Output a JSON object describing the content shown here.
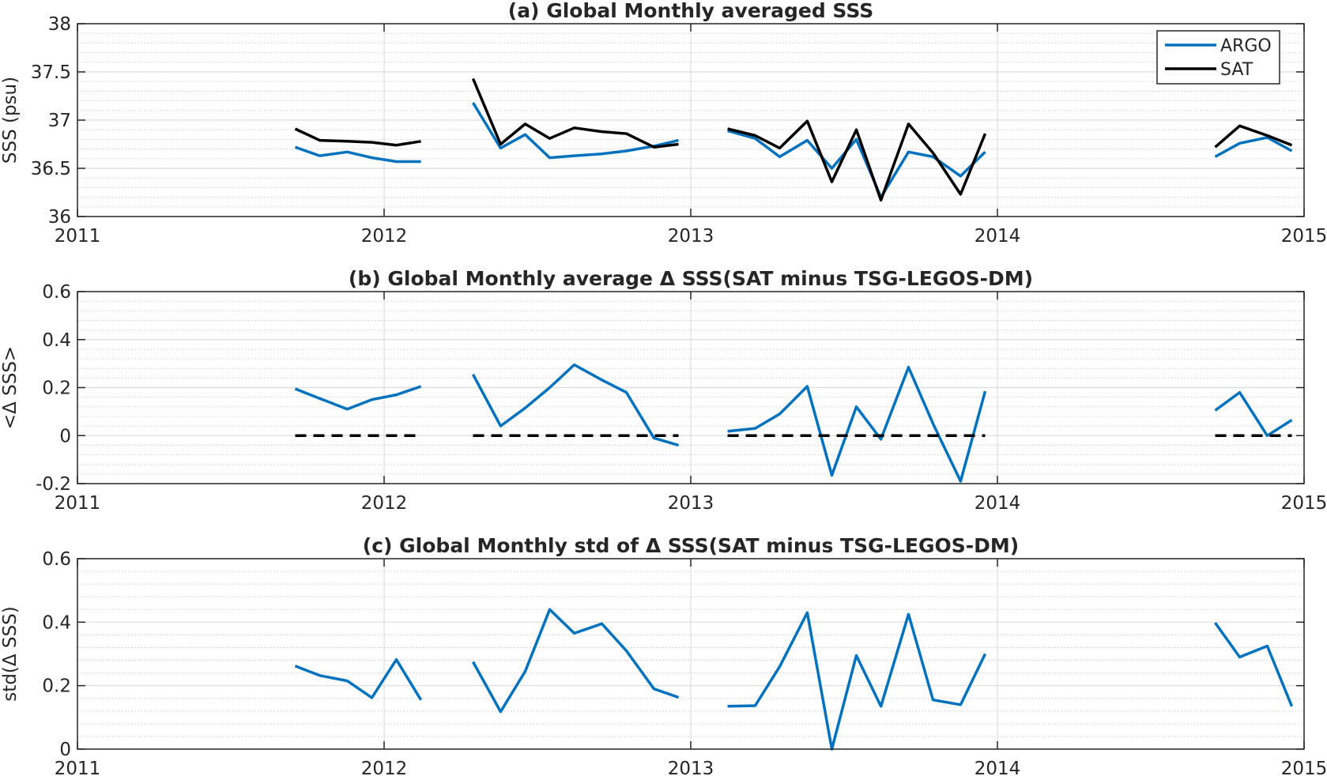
{
  "chart_data": [
    {
      "type": "line",
      "title": "(a) Global Monthly averaged SSS",
      "xlabel": "",
      "ylabel": "SSS (psu)",
      "xlim": [
        2011,
        2015
      ],
      "ylim": [
        36,
        38
      ],
      "xticks": [
        "2011",
        "2012",
        "2013",
        "2014",
        "2015"
      ],
      "yticks": [
        "36",
        "36.5",
        "37",
        "37.5",
        "38"
      ],
      "ytick_values": [
        36,
        36.5,
        37,
        37.5,
        38
      ],
      "minor_grid": true,
      "legend_position": "top-right",
      "series": [
        {
          "name": "ARGO",
          "color": "#0072BD",
          "segments": [
            [
              [
                2011.71,
                36.72
              ],
              [
                2011.79,
                36.63
              ],
              [
                2011.88,
                36.67
              ],
              [
                2011.96,
                36.61
              ],
              [
                2012.04,
                36.57
              ],
              [
                2012.12,
                36.57
              ]
            ],
            [
              [
                2012.29,
                37.18
              ],
              [
                2012.38,
                36.71
              ],
              [
                2012.46,
                36.85
              ],
              [
                2012.54,
                36.61
              ],
              [
                2012.62,
                36.63
              ],
              [
                2012.71,
                36.65
              ],
              [
                2012.79,
                36.68
              ],
              [
                2012.88,
                36.73
              ],
              [
                2012.96,
                36.79
              ]
            ],
            [
              [
                2013.12,
                36.89
              ],
              [
                2013.21,
                36.81
              ],
              [
                2013.29,
                36.62
              ],
              [
                2013.38,
                36.79
              ],
              [
                2013.46,
                36.5
              ],
              [
                2013.54,
                36.8
              ],
              [
                2013.62,
                36.2
              ],
              [
                2013.71,
                36.67
              ],
              [
                2013.79,
                36.62
              ],
              [
                2013.88,
                36.42
              ],
              [
                2013.96,
                36.67
              ]
            ],
            [
              [
                2014.71,
                36.62
              ],
              [
                2014.79,
                36.76
              ],
              [
                2014.88,
                36.82
              ],
              [
                2014.96,
                36.68
              ]
            ]
          ]
        },
        {
          "name": "SAT",
          "color": "#000000",
          "segments": [
            [
              [
                2011.71,
                36.91
              ],
              [
                2011.79,
                36.79
              ],
              [
                2011.88,
                36.78
              ],
              [
                2011.96,
                36.77
              ],
              [
                2012.04,
                36.74
              ],
              [
                2012.12,
                36.78
              ]
            ],
            [
              [
                2012.29,
                37.43
              ],
              [
                2012.38,
                36.75
              ],
              [
                2012.46,
                36.96
              ],
              [
                2012.54,
                36.81
              ],
              [
                2012.62,
                36.92
              ],
              [
                2012.71,
                36.88
              ],
              [
                2012.79,
                36.86
              ],
              [
                2012.88,
                36.72
              ],
              [
                2012.96,
                36.75
              ]
            ],
            [
              [
                2013.12,
                36.91
              ],
              [
                2013.21,
                36.84
              ],
              [
                2013.29,
                36.71
              ],
              [
                2013.38,
                36.99
              ],
              [
                2013.46,
                36.36
              ],
              [
                2013.54,
                36.9
              ],
              [
                2013.62,
                36.17
              ],
              [
                2013.71,
                36.96
              ],
              [
                2013.79,
                36.66
              ],
              [
                2013.88,
                36.23
              ],
              [
                2013.96,
                36.86
              ]
            ],
            [
              [
                2014.71,
                36.72
              ],
              [
                2014.79,
                36.94
              ],
              [
                2014.88,
                36.84
              ],
              [
                2014.96,
                36.74
              ]
            ]
          ]
        }
      ]
    },
    {
      "type": "line",
      "title": "(b) Global Monthly average Δ SSS(SAT minus TSG-LEGOS-DM)",
      "xlabel": "",
      "ylabel": "<Δ SSS>",
      "xlim": [
        2011,
        2015
      ],
      "ylim": [
        -0.2,
        0.6
      ],
      "xticks": [
        "2011",
        "2012",
        "2013",
        "2014",
        "2015"
      ],
      "yticks": [
        "-0.2",
        "0",
        "0.2",
        "0.4",
        "0.6"
      ],
      "ytick_values": [
        -0.2,
        0,
        0.2,
        0.4,
        0.6
      ],
      "minor_grid": true,
      "series": [
        {
          "color": "#0072BD",
          "segments": [
            [
              [
                2011.71,
                0.195
              ],
              [
                2011.79,
                0.155
              ],
              [
                2011.88,
                0.11
              ],
              [
                2011.96,
                0.15
              ],
              [
                2012.04,
                0.17
              ],
              [
                2012.12,
                0.205
              ]
            ],
            [
              [
                2012.29,
                0.255
              ],
              [
                2012.38,
                0.04
              ],
              [
                2012.46,
                0.115
              ],
              [
                2012.54,
                0.2
              ],
              [
                2012.62,
                0.295
              ],
              [
                2012.71,
                0.232
              ],
              [
                2012.79,
                0.18
              ],
              [
                2012.88,
                -0.01
              ],
              [
                2012.96,
                -0.04
              ]
            ],
            [
              [
                2013.12,
                0.018
              ],
              [
                2013.21,
                0.03
              ],
              [
                2013.29,
                0.09
              ],
              [
                2013.38,
                0.205
              ],
              [
                2013.46,
                -0.165
              ],
              [
                2013.54,
                0.12
              ],
              [
                2013.62,
                -0.015
              ],
              [
                2013.71,
                0.285
              ],
              [
                2013.79,
                0.05
              ],
              [
                2013.88,
                -0.19
              ],
              [
                2013.96,
                0.185
              ]
            ],
            [
              [
                2014.71,
                0.105
              ],
              [
                2014.79,
                0.18
              ],
              [
                2014.88,
                0.0
              ],
              [
                2014.96,
                0.065
              ]
            ]
          ]
        },
        {
          "color": "#000000",
          "dashed": true,
          "segments": [
            [
              [
                2011.71,
                0
              ],
              [
                2012.12,
                0
              ]
            ],
            [
              [
                2012.29,
                0
              ],
              [
                2012.96,
                0
              ]
            ],
            [
              [
                2013.12,
                0
              ],
              [
                2013.96,
                0
              ]
            ],
            [
              [
                2014.71,
                0
              ],
              [
                2014.96,
                0
              ]
            ]
          ]
        }
      ]
    },
    {
      "type": "line",
      "title": "(c) Global Monthly std of Δ SSS(SAT minus TSG-LEGOS-DM)",
      "xlabel": "",
      "ylabel": "std(Δ SSS)",
      "xlim": [
        2011,
        2015
      ],
      "ylim": [
        0,
        0.6
      ],
      "xticks": [
        "2011",
        "2012",
        "2013",
        "2014",
        "2015"
      ],
      "yticks": [
        "0",
        "0.2",
        "0.4",
        "0.6"
      ],
      "ytick_values": [
        0,
        0.2,
        0.4,
        0.6
      ],
      "minor_grid": true,
      "series": [
        {
          "color": "#0072BD",
          "segments": [
            [
              [
                2011.71,
                0.262
              ],
              [
                2011.79,
                0.232
              ],
              [
                2011.88,
                0.215
              ],
              [
                2011.96,
                0.162
              ],
              [
                2012.04,
                0.282
              ],
              [
                2012.12,
                0.155
              ]
            ],
            [
              [
                2012.29,
                0.275
              ],
              [
                2012.38,
                0.118
              ],
              [
                2012.46,
                0.245
              ],
              [
                2012.54,
                0.44
              ],
              [
                2012.62,
                0.365
              ],
              [
                2012.71,
                0.395
              ],
              [
                2012.79,
                0.31
              ],
              [
                2012.88,
                0.19
              ],
              [
                2012.96,
                0.163
              ]
            ],
            [
              [
                2013.12,
                0.135
              ],
              [
                2013.21,
                0.137
              ],
              [
                2013.29,
                0.26
              ],
              [
                2013.38,
                0.43
              ],
              [
                2013.46,
                0.0
              ],
              [
                2013.54,
                0.295
              ],
              [
                2013.62,
                0.135
              ],
              [
                2013.71,
                0.425
              ],
              [
                2013.79,
                0.155
              ],
              [
                2013.88,
                0.14
              ],
              [
                2013.96,
                0.3
              ]
            ],
            [
              [
                2014.71,
                0.398
              ],
              [
                2014.79,
                0.29
              ],
              [
                2014.88,
                0.325
              ],
              [
                2014.96,
                0.135
              ]
            ]
          ]
        }
      ]
    }
  ]
}
